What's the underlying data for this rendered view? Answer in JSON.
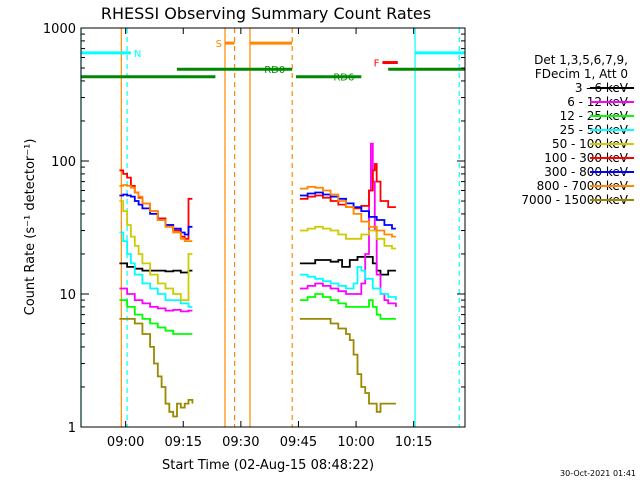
{
  "chart_data": {
    "type": "line",
    "title": "RHESSI Observing Summary Count Rates",
    "xlabel": "Start Time (02-Aug-15 08:48:22)",
    "ylabel": "Count Rate (s⁻¹ detector⁻¹)",
    "yscale": "log",
    "ylim": [
      1,
      1000
    ],
    "xlim_minutes": [
      0,
      100
    ],
    "x_ticks": [
      {
        "label": "09:00",
        "min": 11.63
      },
      {
        "label": "09:15",
        "min": 26.63
      },
      {
        "label": "09:30",
        "min": 41.63
      },
      {
        "label": "09:45",
        "min": 56.63
      },
      {
        "label": "10:00",
        "min": 71.63
      },
      {
        "label": "10:15",
        "min": 86.63
      }
    ],
    "y_ticks": [
      {
        "label": "1",
        "v": 1
      },
      {
        "label": "10",
        "v": 10
      },
      {
        "label": "100",
        "v": 100
      },
      {
        "label": "1000",
        "v": 1000
      }
    ],
    "legend_header": [
      "Det 1,3,5,6,7,9,",
      "FDecim 1, Att 0"
    ],
    "series": [
      {
        "name": "3 - 6 keV",
        "color": "#000000",
        "seg1": [
          [
            10,
            17
          ],
          [
            12,
            16
          ],
          [
            14,
            15.5
          ],
          [
            16,
            15
          ],
          [
            18,
            15
          ],
          [
            20,
            15
          ],
          [
            22,
            14.8
          ],
          [
            24,
            15
          ],
          [
            26,
            14.5
          ],
          [
            28,
            15
          ],
          [
            29,
            15
          ]
        ],
        "seg2": [
          [
            57,
            17
          ],
          [
            59,
            17
          ],
          [
            61,
            18
          ],
          [
            63,
            18
          ],
          [
            65,
            17.5
          ],
          [
            67,
            18
          ],
          [
            68,
            16
          ],
          [
            70,
            18
          ],
          [
            72,
            19
          ],
          [
            74,
            19
          ],
          [
            75,
            19
          ],
          [
            76,
            17
          ],
          [
            77,
            15
          ],
          [
            78,
            14
          ],
          [
            80,
            15
          ],
          [
            82,
            15
          ]
        ]
      },
      {
        "name": "6 - 12 keV",
        "color": "#ff00ff",
        "seg1": [
          [
            10,
            11
          ],
          [
            12,
            10
          ],
          [
            14,
            9
          ],
          [
            16,
            8.5
          ],
          [
            18,
            8
          ],
          [
            20,
            7.8
          ],
          [
            22,
            7.5
          ],
          [
            24,
            7.6
          ],
          [
            26,
            7.4
          ],
          [
            28,
            7.5
          ],
          [
            29,
            7.5
          ]
        ],
        "seg2": [
          [
            57,
            11
          ],
          [
            59,
            11.5
          ],
          [
            61,
            12
          ],
          [
            63,
            11.5
          ],
          [
            65,
            11
          ],
          [
            67,
            10.5
          ],
          [
            69,
            10
          ],
          [
            71,
            10
          ],
          [
            73,
            12
          ],
          [
            74,
            20
          ],
          [
            75,
            60
          ],
          [
            75.5,
            135
          ],
          [
            76,
            70
          ],
          [
            76.5,
            30
          ],
          [
            77,
            14
          ],
          [
            78,
            10
          ],
          [
            79,
            9
          ],
          [
            80,
            8.5
          ],
          [
            82,
            8
          ]
        ]
      },
      {
        "name": "12 - 25 keV",
        "color": "#00ff00",
        "seg1": [
          [
            10,
            9
          ],
          [
            12,
            8
          ],
          [
            14,
            7
          ],
          [
            16,
            6.5
          ],
          [
            18,
            6
          ],
          [
            20,
            5.6
          ],
          [
            22,
            5.3
          ],
          [
            24,
            5
          ],
          [
            26,
            5
          ],
          [
            28,
            5
          ],
          [
            29,
            5
          ]
        ],
        "seg2": [
          [
            57,
            9
          ],
          [
            59,
            9.5
          ],
          [
            61,
            10
          ],
          [
            63,
            9.5
          ],
          [
            65,
            9
          ],
          [
            67,
            8.5
          ],
          [
            69,
            8
          ],
          [
            71,
            8
          ],
          [
            73,
            8
          ],
          [
            75,
            9
          ],
          [
            76,
            8
          ],
          [
            77,
            7
          ],
          [
            78,
            6.5
          ],
          [
            80,
            6.5
          ],
          [
            82,
            6.5
          ]
        ]
      },
      {
        "name": "25 - 50 keV",
        "color": "#00ffff",
        "seg1": [
          [
            10,
            29
          ],
          [
            11,
            25
          ],
          [
            12,
            20
          ],
          [
            13,
            17
          ],
          [
            14,
            14
          ],
          [
            16,
            12
          ],
          [
            18,
            11
          ],
          [
            20,
            10
          ],
          [
            22,
            9
          ],
          [
            24,
            9
          ],
          [
            26,
            8.5
          ],
          [
            28,
            8
          ],
          [
            29,
            8
          ]
        ],
        "seg2": [
          [
            57,
            14
          ],
          [
            59,
            13.5
          ],
          [
            61,
            13
          ],
          [
            63,
            12.5
          ],
          [
            65,
            12
          ],
          [
            67,
            11.5
          ],
          [
            69,
            11
          ],
          [
            71,
            12
          ],
          [
            72,
            16
          ],
          [
            73,
            15
          ],
          [
            74,
            13
          ],
          [
            76,
            11
          ],
          [
            78,
            10
          ],
          [
            80,
            9.5
          ],
          [
            82,
            9
          ]
        ]
      },
      {
        "name": "50 - 100 keV",
        "color": "#cccc00",
        "seg1": [
          [
            10,
            50
          ],
          [
            11,
            42
          ],
          [
            12,
            33
          ],
          [
            13,
            27
          ],
          [
            14,
            23
          ],
          [
            15,
            20
          ],
          [
            16,
            17
          ],
          [
            18,
            14
          ],
          [
            20,
            12
          ],
          [
            22,
            11
          ],
          [
            24,
            10
          ],
          [
            26,
            9
          ],
          [
            27,
            9
          ],
          [
            28,
            20
          ],
          [
            29,
            20
          ]
        ],
        "seg2": [
          [
            57,
            30
          ],
          [
            59,
            31
          ],
          [
            61,
            32
          ],
          [
            63,
            31
          ],
          [
            65,
            30
          ],
          [
            67,
            28
          ],
          [
            69,
            26
          ],
          [
            71,
            26
          ],
          [
            73,
            28
          ],
          [
            75,
            30
          ],
          [
            77,
            26
          ],
          [
            79,
            23
          ],
          [
            81,
            22
          ],
          [
            82,
            22
          ]
        ]
      },
      {
        "name": "100 - 300 keV",
        "color": "#ff0000",
        "seg1": [
          [
            10,
            85
          ],
          [
            11,
            80
          ],
          [
            12,
            75
          ],
          [
            13,
            65
          ],
          [
            14,
            58
          ],
          [
            15,
            53
          ],
          [
            16,
            48
          ],
          [
            18,
            42
          ],
          [
            20,
            37
          ],
          [
            22,
            33
          ],
          [
            24,
            30
          ],
          [
            26,
            27
          ],
          [
            27,
            26
          ],
          [
            28,
            52
          ],
          [
            29,
            52
          ]
        ],
        "seg2": [
          [
            57,
            52
          ],
          [
            59,
            54
          ],
          [
            61,
            55
          ],
          [
            63,
            53
          ],
          [
            65,
            50
          ],
          [
            67,
            47
          ],
          [
            69,
            45
          ],
          [
            71,
            44
          ],
          [
            73,
            46
          ],
          [
            75,
            60
          ],
          [
            76,
            85
          ],
          [
            76.5,
            95
          ],
          [
            77,
            70
          ],
          [
            78,
            50
          ],
          [
            80,
            45
          ],
          [
            82,
            45
          ]
        ]
      },
      {
        "name": "300 - 800 keV",
        "color": "#0000ff",
        "seg1": [
          [
            10,
            55
          ],
          [
            11,
            56
          ],
          [
            12,
            55
          ],
          [
            13,
            54
          ],
          [
            14,
            50
          ],
          [
            15,
            47
          ],
          [
            16,
            44
          ],
          [
            18,
            40
          ],
          [
            20,
            36
          ],
          [
            22,
            33
          ],
          [
            24,
            31
          ],
          [
            26,
            29
          ],
          [
            27,
            28
          ],
          [
            28,
            32
          ],
          [
            29,
            32
          ]
        ],
        "seg2": [
          [
            57,
            55
          ],
          [
            59,
            57
          ],
          [
            61,
            58
          ],
          [
            63,
            56
          ],
          [
            65,
            54
          ],
          [
            67,
            52
          ],
          [
            69,
            48
          ],
          [
            71,
            45
          ],
          [
            73,
            42
          ],
          [
            75,
            38
          ],
          [
            77,
            36
          ],
          [
            79,
            33
          ],
          [
            81,
            31
          ],
          [
            82,
            31
          ]
        ]
      },
      {
        "name": "800 - 7000 keV",
        "color": "#ff8800",
        "seg1": [
          [
            10,
            65
          ],
          [
            11,
            66
          ],
          [
            12,
            65
          ],
          [
            13,
            63
          ],
          [
            14,
            58
          ],
          [
            15,
            54
          ],
          [
            16,
            48
          ],
          [
            18,
            42
          ],
          [
            20,
            36
          ],
          [
            22,
            32
          ],
          [
            24,
            29
          ],
          [
            26,
            26
          ],
          [
            27,
            25
          ],
          [
            28,
            25
          ],
          [
            29,
            25
          ]
        ],
        "seg2": [
          [
            57,
            62
          ],
          [
            59,
            64
          ],
          [
            61,
            63
          ],
          [
            63,
            60
          ],
          [
            65,
            56
          ],
          [
            67,
            50
          ],
          [
            69,
            45
          ],
          [
            71,
            40
          ],
          [
            73,
            35
          ],
          [
            75,
            32
          ],
          [
            77,
            30
          ],
          [
            79,
            28
          ],
          [
            81,
            27
          ],
          [
            82,
            27
          ]
        ]
      },
      {
        "name": "7000 - 15000 keV",
        "color": "#998800",
        "seg1": [
          [
            10,
            6.5
          ],
          [
            12,
            6.5
          ],
          [
            14,
            6
          ],
          [
            16,
            5
          ],
          [
            18,
            4
          ],
          [
            19,
            3
          ],
          [
            20,
            2.4
          ],
          [
            21,
            2
          ],
          [
            22,
            1.5
          ],
          [
            23,
            1.3
          ],
          [
            24,
            1.2
          ],
          [
            25,
            1.5
          ],
          [
            26,
            1.4
          ],
          [
            27,
            1.5
          ],
          [
            28,
            1.6
          ],
          [
            29,
            1.5
          ]
        ],
        "seg2": [
          [
            57,
            6.5
          ],
          [
            59,
            6.5
          ],
          [
            61,
            6.5
          ],
          [
            63,
            6.5
          ],
          [
            65,
            6
          ],
          [
            67,
            5.5
          ],
          [
            69,
            5
          ],
          [
            70,
            4.5
          ],
          [
            71,
            3.5
          ],
          [
            72,
            2.5
          ],
          [
            73,
            2
          ],
          [
            74,
            1.8
          ],
          [
            75,
            1.5
          ],
          [
            76,
            1.5
          ],
          [
            77,
            1.3
          ],
          [
            78,
            1.5
          ],
          [
            80,
            1.5
          ],
          [
            82,
            1.5
          ]
        ]
      }
    ],
    "bars": [
      {
        "label": "N",
        "color": "#00ffff",
        "y": 650,
        "from": 0,
        "to": 13
      },
      {
        "label": "",
        "color": "#00ffff",
        "y": 650,
        "from": 87,
        "to": 100
      },
      {
        "label": "S",
        "color": "#ff8800",
        "y": 770,
        "from": 37.5,
        "to": 40
      },
      {
        "label": "",
        "color": "#ff8800",
        "y": 770,
        "from": 44,
        "to": 55
      },
      {
        "label": "F",
        "color": "#ff0000",
        "y": 550,
        "from": 78.5,
        "to": 82.5
      },
      {
        "label": "RD0",
        "color": "#008800",
        "y": 490,
        "from": 25,
        "to": 55
      },
      {
        "label": "",
        "color": "#008800",
        "y": 490,
        "from": 80,
        "to": 100
      },
      {
        "label": "",
        "color": "#008800",
        "y": 430,
        "from": 0,
        "to": 35
      },
      {
        "label": "RD6",
        "color": "#008800",
        "y": 430,
        "from": 56,
        "to": 73
      }
    ],
    "vlines": [
      {
        "min": 0,
        "color": "#00ffff",
        "dash": false
      },
      {
        "min": 12,
        "color": "#00ffff",
        "dash": true
      },
      {
        "min": 10.5,
        "color": "#ff8800",
        "dash": false
      },
      {
        "min": 37.5,
        "color": "#ff8800",
        "dash": false
      },
      {
        "min": 40,
        "color": "#ff8800",
        "dash": true
      },
      {
        "min": 44,
        "color": "#ff8800",
        "dash": false
      },
      {
        "min": 55,
        "color": "#ff8800",
        "dash": true
      },
      {
        "min": 87,
        "color": "#00ffff",
        "dash": false
      },
      {
        "min": 98.5,
        "color": "#00ffff",
        "dash": true
      }
    ],
    "footer_date": "30-Oct-2021 01:41"
  }
}
